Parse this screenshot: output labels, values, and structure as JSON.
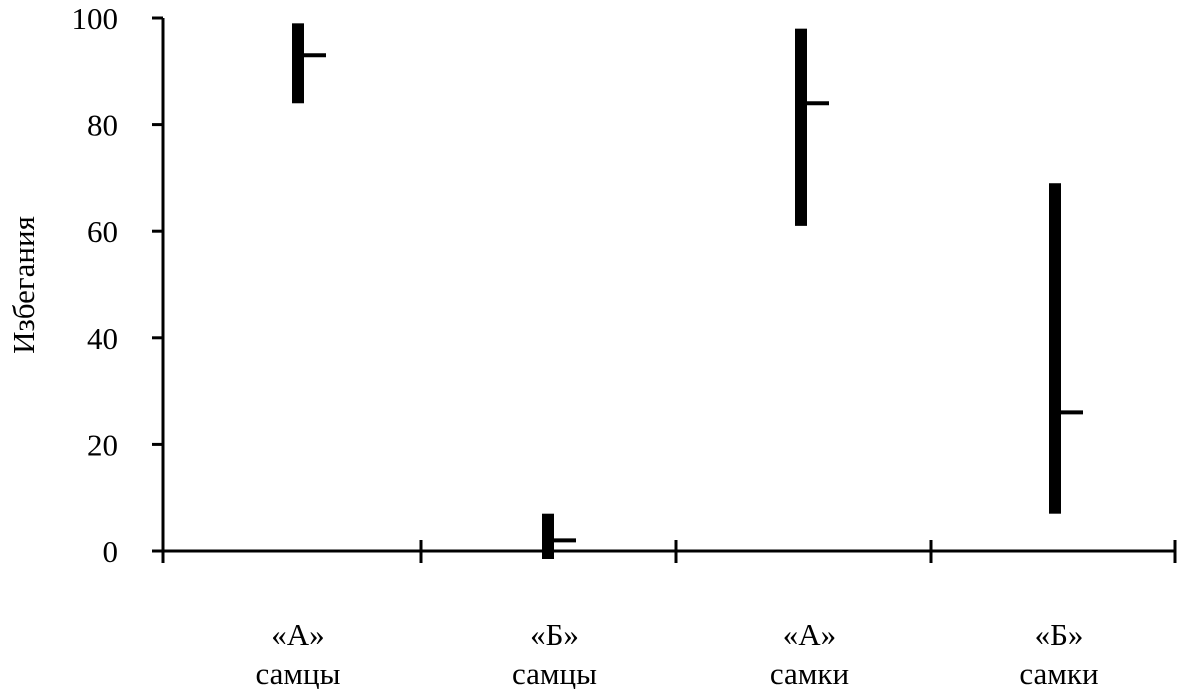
{
  "chart_data": {
    "type": "high-low-close",
    "title": "",
    "xlabel": "",
    "ylabel": "Избегания",
    "ylim": [
      0,
      100
    ],
    "yticks": [
      0,
      20,
      40,
      60,
      80,
      100
    ],
    "grid": false,
    "legend": "none",
    "categories": [
      {
        "line1": "«А»",
        "line2": "самцы"
      },
      {
        "line1": "«Б»",
        "line2": "самцы"
      },
      {
        "line1": "«А»",
        "line2": "самки"
      },
      {
        "line1": "«Б»",
        "line2": "самки"
      }
    ],
    "series": [
      {
        "high": [
          99,
          7,
          98,
          69
        ],
        "low": [
          84,
          -1.5,
          61,
          7
        ],
        "close": [
          93,
          2,
          84,
          26
        ]
      }
    ]
  }
}
